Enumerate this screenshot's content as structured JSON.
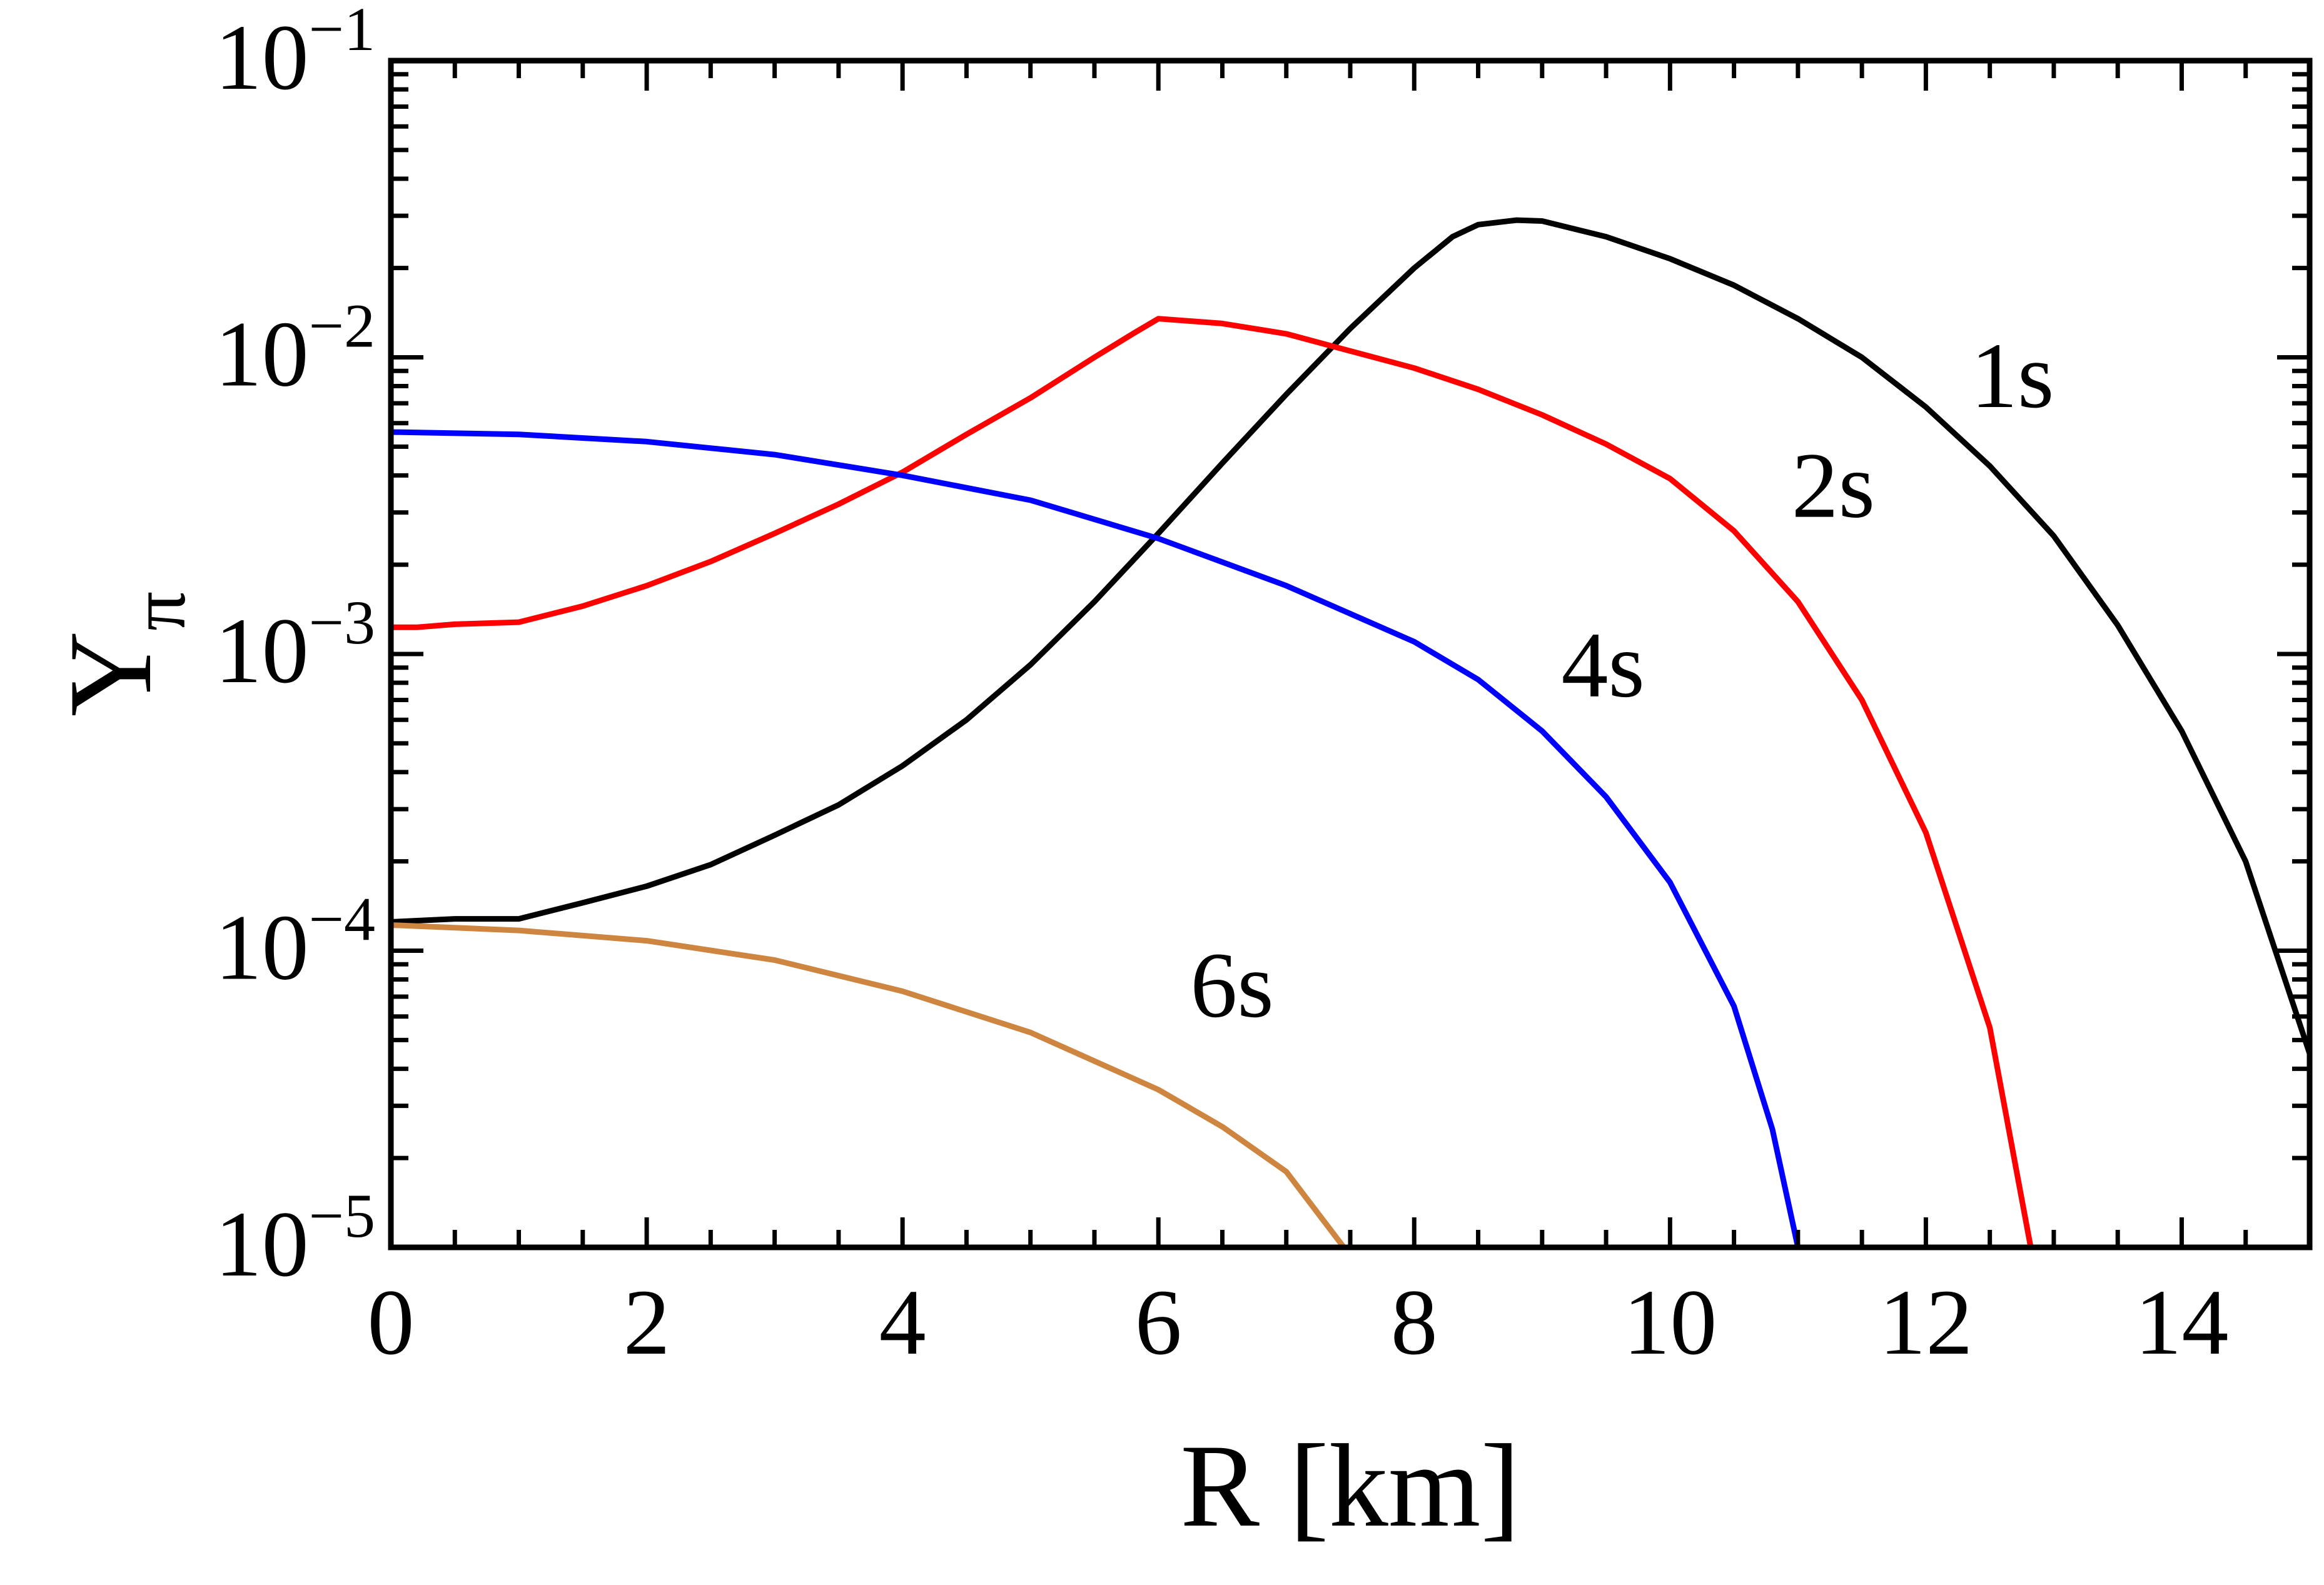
{
  "chart_data": {
    "type": "line",
    "title": "",
    "xlabel": "R [km]",
    "ylabel": {
      "base": "Y",
      "subscript": "π"
    },
    "xlim": [
      0,
      15
    ],
    "ylim": [
      1e-05,
      0.1
    ],
    "yscale": "log",
    "grid": false,
    "x_ticks": [
      {
        "value": 0,
        "label": "0"
      },
      {
        "value": 2,
        "label": "2"
      },
      {
        "value": 4,
        "label": "4"
      },
      {
        "value": 6,
        "label": "6"
      },
      {
        "value": 8,
        "label": "8"
      },
      {
        "value": 10,
        "label": "10"
      },
      {
        "value": 12,
        "label": "12"
      },
      {
        "value": 14,
        "label": "14"
      }
    ],
    "y_ticks": [
      {
        "value": 1e-05,
        "base": "10",
        "exp": "−5"
      },
      {
        "value": 0.0001,
        "base": "10",
        "exp": "−4"
      },
      {
        "value": 0.001,
        "base": "10",
        "exp": "−3"
      },
      {
        "value": 0.01,
        "base": "10",
        "exp": "−2"
      },
      {
        "value": 0.1,
        "base": "10",
        "exp": "−1"
      }
    ],
    "series": [
      {
        "name": "1s",
        "color": "#000000",
        "label_at": [
          12.35,
          0.0068
        ],
        "points": [
          [
            0,
            0.000125
          ],
          [
            0.5,
            0.000128
          ],
          [
            1,
            0.000128
          ],
          [
            1.5,
            0.000145
          ],
          [
            2,
            0.000165
          ],
          [
            2.5,
            0.000195
          ],
          [
            3,
            0.000245
          ],
          [
            3.5,
            0.00031
          ],
          [
            4,
            0.00042
          ],
          [
            4.5,
            0.0006
          ],
          [
            5,
            0.00092
          ],
          [
            5.5,
            0.0015
          ],
          [
            6,
            0.00255
          ],
          [
            6.5,
            0.0044
          ],
          [
            7,
            0.0075
          ],
          [
            7.5,
            0.0125
          ],
          [
            8,
            0.02
          ],
          [
            8.3,
            0.0255
          ],
          [
            8.5,
            0.028
          ],
          [
            8.8,
            0.029
          ],
          [
            9,
            0.0288
          ],
          [
            9.5,
            0.0255
          ],
          [
            10,
            0.0215
          ],
          [
            10.5,
            0.0175
          ],
          [
            11,
            0.0135
          ],
          [
            11.5,
            0.01
          ],
          [
            12,
            0.0068
          ],
          [
            12.5,
            0.0043
          ],
          [
            13,
            0.0025
          ],
          [
            13.5,
            0.00125
          ],
          [
            14,
            0.00055
          ],
          [
            14.5,
            0.0002
          ],
          [
            15,
            4.5e-05
          ]
        ]
      },
      {
        "name": "2s",
        "color": "#ff0000",
        "label_at": [
          10.95,
          0.0029
        ],
        "points": [
          [
            0,
            0.00123
          ],
          [
            0.2,
            0.00123
          ],
          [
            0.5,
            0.00126
          ],
          [
            1,
            0.00128
          ],
          [
            1.5,
            0.00145
          ],
          [
            2,
            0.0017
          ],
          [
            2.5,
            0.00205
          ],
          [
            3,
            0.00255
          ],
          [
            3.5,
            0.0032
          ],
          [
            4,
            0.0041
          ],
          [
            4.5,
            0.0055
          ],
          [
            5,
            0.0073
          ],
          [
            5.5,
            0.01
          ],
          [
            5.8,
            0.012
          ],
          [
            6,
            0.0135
          ],
          [
            6.5,
            0.013
          ],
          [
            7,
            0.012
          ],
          [
            7.5,
            0.0105
          ],
          [
            8,
            0.0092
          ],
          [
            8.5,
            0.0078
          ],
          [
            9,
            0.0064
          ],
          [
            9.5,
            0.0051
          ],
          [
            10,
            0.0039
          ],
          [
            10.5,
            0.0026
          ],
          [
            11,
            0.0015
          ],
          [
            11.5,
            0.0007
          ],
          [
            12,
            0.00025
          ],
          [
            12.5,
            5.5e-05
          ],
          [
            12.82,
            1e-05
          ]
        ]
      },
      {
        "name": "4s",
        "color": "#0000ff",
        "label_at": [
          9.15,
          0.00072
        ],
        "points": [
          [
            0,
            0.0056
          ],
          [
            1,
            0.0055
          ],
          [
            2,
            0.0052
          ],
          [
            3,
            0.0047
          ],
          [
            4,
            0.004
          ],
          [
            5,
            0.0033
          ],
          [
            6,
            0.00245
          ],
          [
            7,
            0.0017
          ],
          [
            8,
            0.0011
          ],
          [
            8.5,
            0.00082
          ],
          [
            9,
            0.00055
          ],
          [
            9.5,
            0.00033
          ],
          [
            10,
            0.00017
          ],
          [
            10.5,
            6.5e-05
          ],
          [
            10.8,
            2.5e-05
          ],
          [
            11,
            1e-05
          ]
        ]
      },
      {
        "name": "6s",
        "color": "#cd853f",
        "label_at": [
          6.25,
          6e-05
        ],
        "points": [
          [
            0,
            0.000122
          ],
          [
            1,
            0.000117
          ],
          [
            2,
            0.000108
          ],
          [
            3,
            9.3e-05
          ],
          [
            4,
            7.3e-05
          ],
          [
            5,
            5.3e-05
          ],
          [
            6,
            3.4e-05
          ],
          [
            6.5,
            2.55e-05
          ],
          [
            7,
            1.8e-05
          ],
          [
            7.45,
            1e-05
          ]
        ]
      }
    ]
  }
}
